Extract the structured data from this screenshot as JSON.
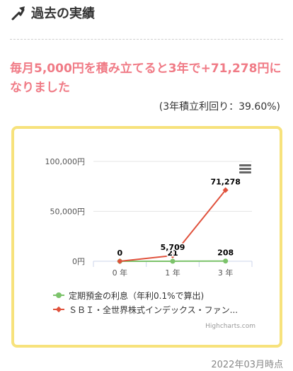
{
  "section": {
    "title": "過去の実績",
    "icon": "trend-up-arrow-icon"
  },
  "headline": "毎月5,000円を積み立てると3年で+71,278円になりました",
  "rate_text": "(3年積立利回り：39.60%)",
  "timestamp": "2022年03月時点",
  "colors": {
    "headline": "#f07b86",
    "border": "#f7e27c",
    "series_deposit": "#7cc36b",
    "series_fund": "#e0513c"
  },
  "chart_data": {
    "type": "line",
    "categories": [
      "0 年",
      "1 年",
      "3 年"
    ],
    "y_ticks": [
      "0円",
      "50,000円",
      "100,000円"
    ],
    "ylim": [
      0,
      100000
    ],
    "series": [
      {
        "name": "定期預金の利息（年利0.1%で算出)",
        "values": [
          0,
          21,
          208
        ],
        "data_labels": [
          "",
          "21",
          "208"
        ],
        "color": "#7cc36b",
        "marker": "circle"
      },
      {
        "name": "ＳＢＩ・全世界株式インデックス・ファン...",
        "values": [
          0,
          5709,
          71278
        ],
        "data_labels": [
          "0",
          "5,709",
          "71,278"
        ],
        "color": "#e0513c",
        "marker": "diamond"
      }
    ],
    "grid": true,
    "legend_position": "bottom",
    "credits": "Highcharts.com"
  }
}
